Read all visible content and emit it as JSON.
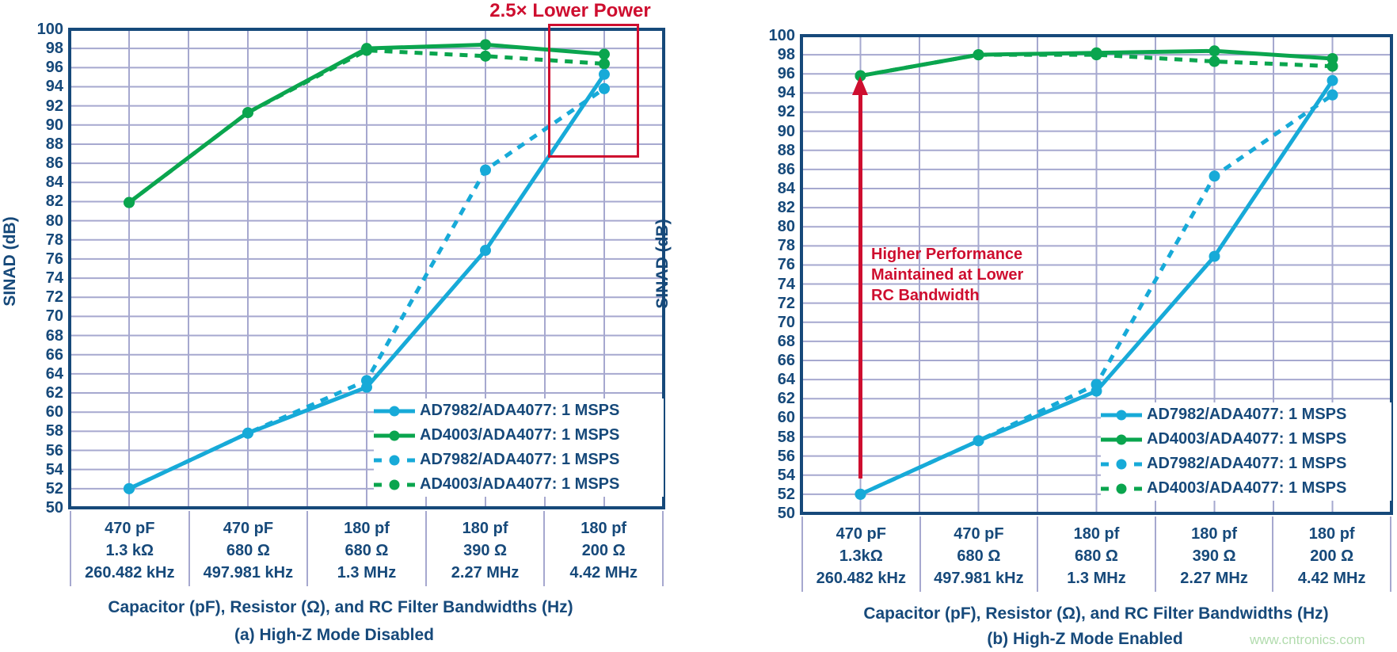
{
  "page": {
    "watermark": "www.cntronics.com",
    "colors": {
      "navy": "#16497a",
      "cyan": "#17aad8",
      "green": "#0aa54e",
      "red": "#ce0e2f",
      "grid": "#a6a8cf",
      "watermark_green": "#b2dcae"
    }
  },
  "annotations": {
    "lower_power_label": "2.5× Lower Power",
    "higher_perf_lines": [
      "Higher Performance",
      "Maintained at Lower",
      "RC Bandwidth"
    ]
  },
  "chart_data": [
    {
      "type": "line",
      "title": "(a) High-Z Mode Disabled",
      "xlabel": "Capacitor (pF), Resistor (Ω), and RC Filter Bandwidths (Hz)",
      "ylabel": "SINAD (dB)",
      "ylim": [
        50,
        100
      ],
      "ytick_step": 2,
      "grid": true,
      "legend_position": "lower right",
      "categories": [
        [
          "470 pF",
          "1.3 kΩ",
          "260.482 kHz"
        ],
        [
          "470 pF",
          "680 Ω",
          "497.981 kHz"
        ],
        [
          "180 pf",
          "680 Ω",
          "1.3 MHz"
        ],
        [
          "180 pf",
          "390 Ω",
          "2.27 MHz"
        ],
        [
          "180 pf",
          "200 Ω",
          "4.42 MHz"
        ]
      ],
      "series": [
        {
          "name": "AD7982/ADA4077: 1 MSPS",
          "color_key": "cyan",
          "style": "solid",
          "values": [
            52.0,
            57.8,
            62.6,
            76.9,
            95.3
          ]
        },
        {
          "name": "AD4003/ADA4077: 1 MSPS",
          "color_key": "green",
          "style": "solid",
          "values": [
            81.9,
            91.3,
            98.0,
            98.4,
            97.4
          ]
        },
        {
          "name": "AD7982/ADA4077: 1 MSPS",
          "color_key": "cyan",
          "style": "dashed",
          "values": [
            52.0,
            57.8,
            63.3,
            85.3,
            93.8
          ]
        },
        {
          "name": "AD4003/ADA4077: 1 MSPS",
          "color_key": "green",
          "style": "dashed",
          "values": [
            81.9,
            91.3,
            97.8,
            97.2,
            96.4
          ]
        }
      ],
      "annotation": "red box labeled 2.5× Lower Power over last category"
    },
    {
      "type": "line",
      "title": "(b) High-Z Mode Enabled",
      "xlabel": "Capacitor (pF), Resistor (Ω), and RC Filter Bandwidths (Hz)",
      "ylabel": "SINAD (dB)",
      "ylim": [
        50,
        100
      ],
      "ytick_step": 2,
      "grid": true,
      "legend_position": "lower right",
      "categories": [
        [
          "470 pF",
          "1.3kΩ",
          "260.482 kHz"
        ],
        [
          "470 pF",
          "680 Ω",
          "497.981 kHz"
        ],
        [
          "180 pf",
          "680 Ω",
          "1.3 MHz"
        ],
        [
          "180 pf",
          "390 Ω",
          "2.27 MHz"
        ],
        [
          "180 pf",
          "200 Ω",
          "4.42 MHz"
        ]
      ],
      "series": [
        {
          "name": "AD7982/ADA4077: 1 MSPS",
          "color_key": "cyan",
          "style": "solid",
          "values": [
            52.0,
            57.6,
            62.8,
            76.9,
            95.3
          ]
        },
        {
          "name": "AD4003/ADA4077: 1 MSPS",
          "color_key": "green",
          "style": "solid",
          "values": [
            95.8,
            98.0,
            98.2,
            98.4,
            97.6
          ]
        },
        {
          "name": "AD7982/ADA4077: 1 MSPS",
          "color_key": "cyan",
          "style": "dashed",
          "values": [
            52.0,
            57.6,
            63.5,
            85.3,
            93.8
          ]
        },
        {
          "name": "AD4003/ADA4077: 1 MSPS",
          "color_key": "green",
          "style": "dashed",
          "values": [
            95.8,
            98.0,
            98.0,
            97.3,
            96.8
          ]
        }
      ],
      "annotation": "red up arrow at first category labeled Higher Performance Maintained at Lower RC Bandwidth"
    }
  ]
}
